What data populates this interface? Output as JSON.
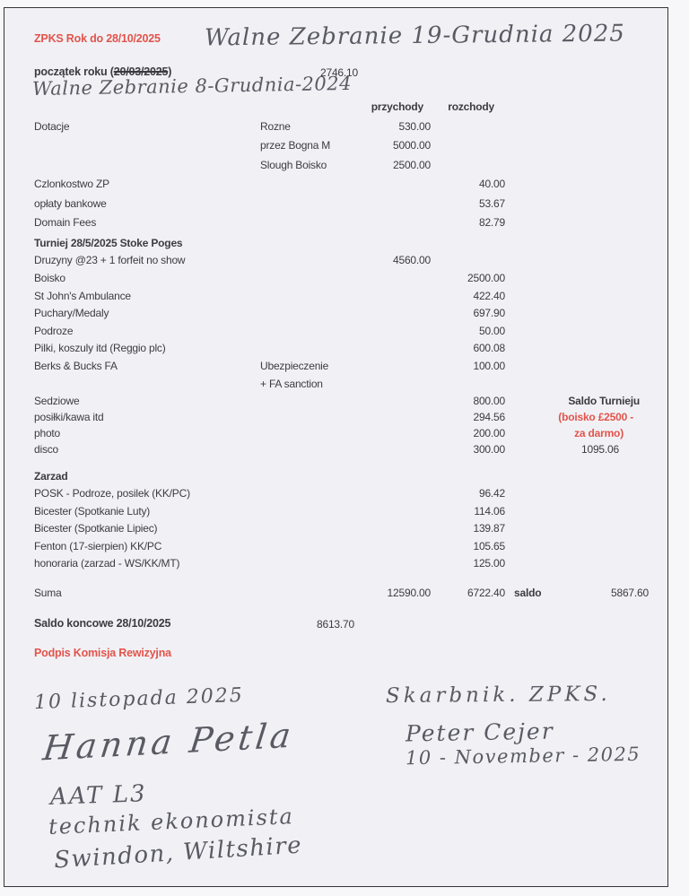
{
  "colors": {
    "accent_red": "#e2544b",
    "ink": "#3c3c40",
    "handwriting_gray": "#5a5a64",
    "paper": "#f1f1f5"
  },
  "header": {
    "title": "ZPKS Rok do 28/10/2025",
    "handwritten_note": "Walne Zebranie 19-Grudnia 2025"
  },
  "opening": {
    "label_prefix": "początek roku (",
    "struck_date": "20/03/2025",
    "label_suffix": ")",
    "value": "2746.10",
    "handwritten_correction": "Walne Zebranie 8-Grudnia-2024"
  },
  "columns": {
    "income": "przychody",
    "expense": "rozchody"
  },
  "sections": [
    {
      "id": "general",
      "rows": [
        {
          "label": "Dotacje",
          "sub": "Rozne",
          "income": "530.00"
        },
        {
          "sub": "przez Bogna M",
          "income": "5000.00"
        },
        {
          "sub": "Slough Boisko",
          "income": "2500.00"
        },
        {
          "label": "Czlonkostwo ZP",
          "expense": "40.00"
        },
        {
          "label": "opłaty bankowe",
          "expense": "53.67"
        },
        {
          "label": "Domain Fees",
          "expense": "82.79"
        }
      ]
    },
    {
      "id": "tournament",
      "header": "Turniej 28/5/2025 Stoke Poges",
      "rows": [
        {
          "label": "Druzyny @23 + 1 forfeit no show",
          "income": "4560.00"
        },
        {
          "label": "Boisko",
          "expense": "2500.00"
        },
        {
          "label": "St John's Ambulance",
          "expense": "422.40"
        },
        {
          "label": "Puchary/Medaly",
          "expense": "697.90"
        },
        {
          "label": "Podroze",
          "expense": "50.00"
        },
        {
          "label": "Pilki, koszuly itd (Reggio plc)",
          "expense": "600.08"
        },
        {
          "label": "Berks & Bucks FA",
          "sub": "Ubezpieczenie",
          "expense": "100.00"
        },
        {
          "sub": "+ FA sanction"
        }
      ]
    },
    {
      "id": "tournament-summary",
      "rows": [
        {
          "label": "Sedziowe",
          "expense": "800.00",
          "extra": "Saldo Turnieju",
          "extra_style": "title"
        },
        {
          "label": "posiłki/kawa itd",
          "expense": "294.56",
          "extra": "(boisko £2500 -",
          "extra_style": "red"
        },
        {
          "label": "photo",
          "expense": "200.00",
          "extra": "za darmo)",
          "extra_style": "red2"
        },
        {
          "label": "disco",
          "expense": "300.00",
          "extra": "1095.06",
          "extra_style": "value"
        }
      ]
    },
    {
      "id": "board",
      "header": "Zarzad",
      "rows": [
        {
          "label": "POSK - Podroze, posilek (KK/PC)",
          "expense": "96.42"
        },
        {
          "label": "Bicester (Spotkanie Luty)",
          "expense": "114.06"
        },
        {
          "label": "Bicester (Spotkanie Lipiec)",
          "expense": "139.87"
        },
        {
          "label": "Fenton (17-sierpien) KK/PC",
          "expense": "105.65"
        },
        {
          "label": "honoraria (zarzad - WS/KK/MT)",
          "expense": "125.00"
        }
      ]
    }
  ],
  "totals": {
    "suma_label": "Suma",
    "income_total": "12590.00",
    "expense_total": "6722.40",
    "saldo_label": "saldo",
    "saldo_value": "5867.60"
  },
  "closing": {
    "label": "Saldo koncowe 28/10/2025",
    "value": "8613.70"
  },
  "signature_heading": "Podpis Komisja Rewizyjna",
  "signatures": {
    "left": {
      "date": "10 listopada 2025",
      "name": "Hanna Petla",
      "qualification": "AAT L3",
      "title": "technik ekonomista",
      "location": "Swindon, Wiltshire"
    },
    "right": {
      "role": "Skarbnik. ZPKS.",
      "name": "Peter Cejer",
      "date": "10 - November - 2025"
    }
  }
}
